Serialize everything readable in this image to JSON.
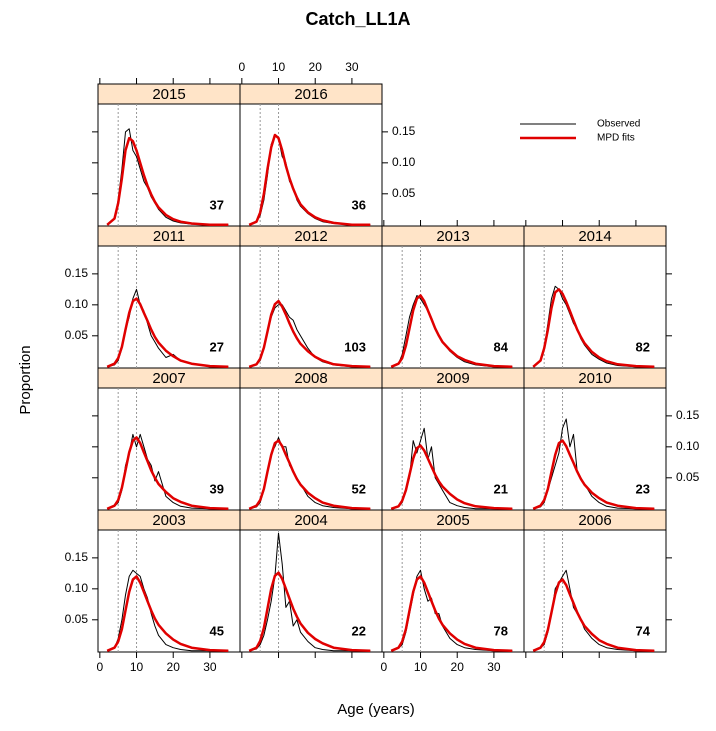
{
  "chart_data": {
    "type": "line",
    "title": "Catch_LL1A",
    "xlabel": "Age (years)",
    "ylabel": "Proportion",
    "xlim": [
      -0.5,
      38.2
    ],
    "ylim": [
      -0.002,
      0.195
    ],
    "xticks": [
      0,
      10,
      20,
      30
    ],
    "yticks": [
      0.05,
      {
        "value": 0.1,
        "label": "0.10"
      },
      0.15
    ],
    "reference_lines": [
      5,
      10
    ],
    "legend": "top-right",
    "legend_entries": [
      {
        "name": "Observed",
        "color": "#000000"
      },
      {
        "name": "MPD fits",
        "color": "#e00000"
      }
    ],
    "x": [
      2,
      4,
      5,
      6,
      7,
      8,
      9,
      10,
      11,
      12,
      13,
      14,
      15,
      16,
      18,
      20,
      22,
      25,
      30,
      35
    ],
    "panels": [
      {
        "title": "2003",
        "annotation": 45,
        "observed": [
          0,
          0.004,
          0.02,
          0.05,
          0.09,
          0.12,
          0.13,
          0.125,
          0.12,
          0.1,
          0.085,
          0.06,
          0.04,
          0.025,
          0.01,
          0.005,
          0.002,
          0,
          0,
          0
        ],
        "fitted": [
          0,
          0.005,
          0.015,
          0.035,
          0.065,
          0.095,
          0.115,
          0.12,
          0.11,
          0.095,
          0.08,
          0.065,
          0.052,
          0.042,
          0.028,
          0.018,
          0.011,
          0.005,
          0.001,
          0
        ]
      },
      {
        "title": "2004",
        "annotation": 22,
        "observed": [
          0,
          0.003,
          0.01,
          0.025,
          0.05,
          0.08,
          0.12,
          0.19,
          0.14,
          0.07,
          0.08,
          0.04,
          0.05,
          0.03,
          0.015,
          0.005,
          0.002,
          0,
          0,
          0
        ],
        "fitted": [
          0,
          0.005,
          0.016,
          0.037,
          0.068,
          0.1,
          0.121,
          0.126,
          0.116,
          0.1,
          0.084,
          0.068,
          0.055,
          0.044,
          0.029,
          0.019,
          0.012,
          0.005,
          0.001,
          0
        ]
      },
      {
        "title": "2005",
        "annotation": 78,
        "observed": [
          0,
          0.004,
          0.01,
          0.03,
          0.06,
          0.09,
          0.12,
          0.13,
          0.1,
          0.08,
          0.085,
          0.06,
          0.06,
          0.04,
          0.02,
          0.01,
          0.005,
          0.002,
          0,
          0
        ],
        "fitted": [
          0,
          0.005,
          0.015,
          0.035,
          0.065,
          0.095,
          0.115,
          0.12,
          0.11,
          0.095,
          0.08,
          0.065,
          0.052,
          0.042,
          0.028,
          0.018,
          0.011,
          0.005,
          0.001,
          0
        ]
      },
      {
        "title": "2006",
        "annotation": 74,
        "observed": [
          0,
          0.005,
          0.01,
          0.03,
          0.06,
          0.1,
          0.11,
          0.12,
          0.13,
          0.1,
          0.07,
          0.06,
          0.05,
          0.035,
          0.02,
          0.01,
          0.005,
          0.002,
          0,
          0
        ],
        "fitted": [
          0,
          0.005,
          0.014,
          0.034,
          0.062,
          0.091,
          0.11,
          0.115,
          0.106,
          0.091,
          0.077,
          0.062,
          0.05,
          0.04,
          0.027,
          0.017,
          0.011,
          0.005,
          0.001,
          0
        ]
      },
      {
        "title": "2007",
        "annotation": 39,
        "observed": [
          0,
          0.004,
          0.01,
          0.03,
          0.07,
          0.09,
          0.12,
          0.1,
          0.12,
          0.1,
          0.08,
          0.07,
          0.045,
          0.06,
          0.02,
          0.01,
          0.004,
          0.001,
          0,
          0
        ],
        "fitted": [
          0,
          0.005,
          0.014,
          0.034,
          0.062,
          0.091,
          0.11,
          0.115,
          0.106,
          0.091,
          0.077,
          0.062,
          0.05,
          0.04,
          0.027,
          0.017,
          0.011,
          0.005,
          0.001,
          0
        ]
      },
      {
        "title": "2008",
        "annotation": 52,
        "observed": [
          0,
          0.003,
          0.01,
          0.03,
          0.06,
          0.09,
          0.1,
          0.115,
          0.1,
          0.1,
          0.07,
          0.06,
          0.05,
          0.04,
          0.02,
          0.01,
          0.005,
          0.002,
          0,
          0
        ],
        "fitted": [
          0,
          0.005,
          0.014,
          0.032,
          0.06,
          0.087,
          0.106,
          0.11,
          0.101,
          0.087,
          0.074,
          0.06,
          0.048,
          0.039,
          0.026,
          0.017,
          0.01,
          0.005,
          0.001,
          0
        ]
      },
      {
        "title": "2009",
        "annotation": 21,
        "observed": [
          0,
          0.003,
          0.01,
          0.03,
          0.05,
          0.11,
          0.09,
          0.11,
          0.13,
          0.08,
          0.1,
          0.05,
          0.04,
          0.03,
          0.01,
          0.005,
          0.002,
          0,
          0,
          0
        ],
        "fitted": [
          0,
          0.004,
          0.013,
          0.03,
          0.055,
          0.081,
          0.098,
          0.102,
          0.094,
          0.081,
          0.068,
          0.055,
          0.044,
          0.036,
          0.024,
          0.015,
          0.009,
          0.004,
          0.001,
          0
        ]
      },
      {
        "title": "2010",
        "annotation": 23,
        "observed": [
          0,
          0.003,
          0.01,
          0.03,
          0.05,
          0.07,
          0.09,
          0.13,
          0.145,
          0.1,
          0.12,
          0.06,
          0.05,
          0.04,
          0.02,
          0.01,
          0.004,
          0.001,
          0,
          0
        ],
        "fitted": [
          0,
          0.005,
          0.014,
          0.032,
          0.06,
          0.087,
          0.106,
          0.11,
          0.101,
          0.087,
          0.074,
          0.06,
          0.048,
          0.039,
          0.026,
          0.017,
          0.01,
          0.005,
          0.001,
          0
        ]
      },
      {
        "title": "2011",
        "annotation": 27,
        "observed": [
          0,
          0.003,
          0.01,
          0.03,
          0.06,
          0.08,
          0.11,
          0.125,
          0.1,
          0.09,
          0.07,
          0.05,
          0.04,
          0.03,
          0.015,
          0.02,
          0.01,
          0.005,
          0,
          0
        ],
        "fitted": [
          0,
          0.005,
          0.014,
          0.032,
          0.06,
          0.087,
          0.106,
          0.11,
          0.101,
          0.087,
          0.074,
          0.06,
          0.048,
          0.039,
          0.026,
          0.017,
          0.01,
          0.005,
          0.001,
          0
        ]
      },
      {
        "title": "2012",
        "annotation": 103,
        "observed": [
          0,
          0.004,
          0.01,
          0.03,
          0.06,
          0.08,
          0.095,
          0.1,
          0.1,
          0.09,
          0.08,
          0.075,
          0.06,
          0.05,
          0.03,
          0.015,
          0.008,
          0.003,
          0,
          0
        ],
        "fitted": [
          0,
          0.004,
          0.013,
          0.031,
          0.057,
          0.084,
          0.101,
          0.106,
          0.097,
          0.084,
          0.07,
          0.057,
          0.046,
          0.037,
          0.025,
          0.016,
          0.01,
          0.004,
          0.001,
          0
        ]
      },
      {
        "title": "2013",
        "annotation": 84,
        "observed": [
          0,
          0.005,
          0.02,
          0.05,
          0.08,
          0.1,
          0.115,
          0.11,
          0.1,
          0.09,
          0.075,
          0.06,
          0.05,
          0.04,
          0.025,
          0.015,
          0.008,
          0.003,
          0,
          0
        ],
        "fitted": [
          0,
          0.005,
          0.014,
          0.034,
          0.062,
          0.091,
          0.11,
          0.115,
          0.106,
          0.091,
          0.077,
          0.062,
          0.05,
          0.04,
          0.027,
          0.017,
          0.011,
          0.005,
          0.001,
          0
        ]
      },
      {
        "title": "2014",
        "annotation": 82,
        "observed": [
          0,
          0.01,
          0.03,
          0.07,
          0.11,
          0.13,
          0.125,
          0.11,
          0.1,
          0.085,
          0.07,
          0.06,
          0.045,
          0.035,
          0.02,
          0.012,
          0.006,
          0.002,
          0,
          0
        ],
        "fitted": [
          0,
          0.01,
          0.03,
          0.06,
          0.095,
          0.12,
          0.125,
          0.118,
          0.105,
          0.09,
          0.075,
          0.06,
          0.048,
          0.038,
          0.024,
          0.015,
          0.009,
          0.004,
          0.001,
          0
        ]
      },
      {
        "title": "2015",
        "annotation": 37,
        "observed": [
          0,
          0.01,
          0.04,
          0.09,
          0.15,
          0.155,
          0.12,
          0.11,
          0.09,
          0.07,
          0.06,
          0.045,
          0.035,
          0.025,
          0.012,
          0.006,
          0.003,
          0.001,
          0,
          0
        ],
        "fitted": [
          0,
          0.01,
          0.035,
          0.075,
          0.12,
          0.14,
          0.135,
          0.12,
          0.1,
          0.08,
          0.063,
          0.049,
          0.037,
          0.028,
          0.016,
          0.009,
          0.005,
          0.002,
          0,
          0
        ]
      },
      {
        "title": "2016",
        "annotation": 36,
        "observed": [
          0,
          0.004,
          0.015,
          0.04,
          0.08,
          0.13,
          0.145,
          0.14,
          0.11,
          0.1,
          0.07,
          0.06,
          0.04,
          0.03,
          0.018,
          0.01,
          0.005,
          0.002,
          0,
          0
        ],
        "fitted": [
          0,
          0.005,
          0.02,
          0.05,
          0.09,
          0.125,
          0.145,
          0.14,
          0.12,
          0.095,
          0.075,
          0.058,
          0.044,
          0.033,
          0.02,
          0.012,
          0.007,
          0.003,
          0,
          0
        ]
      }
    ]
  }
}
